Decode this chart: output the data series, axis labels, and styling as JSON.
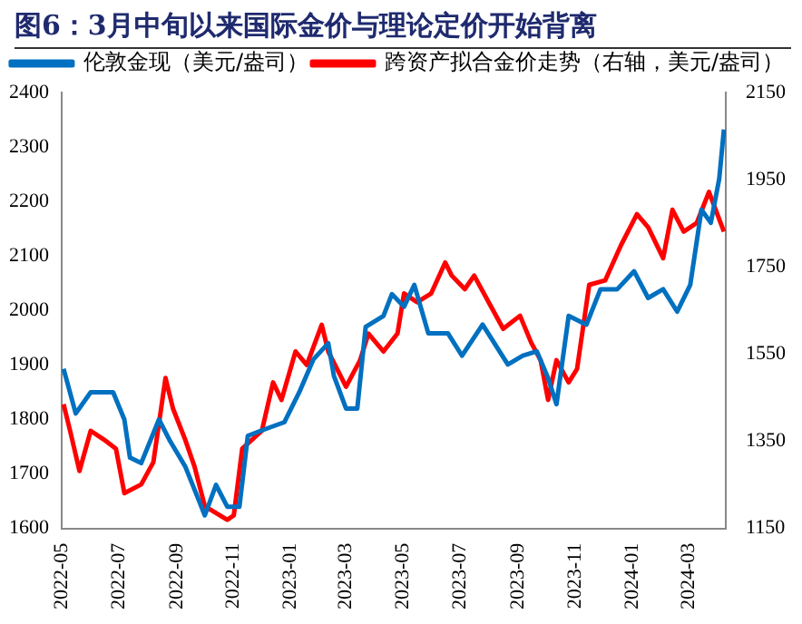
{
  "chart_data": {
    "type": "line",
    "title": "图6：3月中旬以来国际金价与理论定价开始背离",
    "legend": "top",
    "grid": false,
    "marker": "none",
    "line_style": "solid",
    "xlim": [
      "2022-05-01",
      "2024-04-10"
    ],
    "xticks": [
      "2022-05",
      "2022-07",
      "2022-09",
      "2022-11",
      "2023-01",
      "2023-03",
      "2023-05",
      "2023-07",
      "2023-09",
      "2023-11",
      "2024-01",
      "2024-03"
    ],
    "ylim": [
      1600,
      2400
    ],
    "yticks": [
      1600,
      1700,
      1800,
      1900,
      2000,
      2100,
      2200,
      2300,
      2400
    ],
    "y2lim": [
      1150,
      2150
    ],
    "y2ticks": [
      1150,
      1350,
      1550,
      1750,
      1950,
      2150
    ],
    "series": [
      {
        "name": "伦敦金现（美元/盎司）",
        "color": "#0070c0",
        "x": [
          "2022-05-03",
          "2022-05-16",
          "2022-06-01",
          "2022-06-25",
          "2022-07-07",
          "2022-07-13",
          "2022-07-25",
          "2022-08-13",
          "2022-08-25",
          "2022-09-10",
          "2022-09-25",
          "2022-10-01",
          "2022-10-13",
          "2022-10-25",
          "2022-11-07",
          "2022-11-16",
          "2022-12-01",
          "2022-12-25",
          "2023-01-10",
          "2023-01-25",
          "2023-02-10",
          "2023-02-16",
          "2023-03-01",
          "2023-03-13",
          "2023-03-22",
          "2023-04-10",
          "2023-04-19",
          "2023-05-02",
          "2023-05-13",
          "2023-05-28",
          "2023-06-18",
          "2023-07-03",
          "2023-07-25",
          "2023-08-21",
          "2023-09-06",
          "2023-09-21",
          "2023-10-03",
          "2023-10-12",
          "2023-10-25",
          "2023-11-13",
          "2023-11-28",
          "2023-12-16",
          "2024-01-03",
          "2024-01-18",
          "2024-02-03",
          "2024-02-18",
          "2024-03-03",
          "2024-03-15",
          "2024-03-25",
          "2024-04-03",
          "2024-04-08"
        ],
        "values": [
          1893,
          1811,
          1850,
          1850,
          1800,
          1730,
          1720,
          1800,
          1760,
          1714,
          1650,
          1624,
          1680,
          1640,
          1640,
          1770,
          1780,
          1795,
          1850,
          1910,
          1940,
          1880,
          1820,
          1820,
          1970,
          1990,
          2030,
          2007,
          2047,
          1958,
          1958,
          1917,
          1974,
          1901,
          1917,
          1925,
          1876,
          1828,
          1990,
          1974,
          2039,
          2039,
          2072,
          2023,
          2039,
          1998,
          2047,
          2185,
          2161,
          2242,
          2332
        ]
      },
      {
        "name": "跨资产拟合金价走势（右轴，美元/盎司）",
        "color": "#ff0000",
        "axis": "y2",
        "x": [
          "2022-05-03",
          "2022-05-10",
          "2022-05-20",
          "2022-06-01",
          "2022-06-15",
          "2022-06-28",
          "2022-07-07",
          "2022-07-25",
          "2022-08-07",
          "2022-08-20",
          "2022-08-28",
          "2022-09-10",
          "2022-09-20",
          "2022-10-01",
          "2022-10-25",
          "2022-11-01",
          "2022-11-10",
          "2022-12-01",
          "2022-12-13",
          "2022-12-22",
          "2023-01-06",
          "2023-01-18",
          "2023-02-03",
          "2023-02-10",
          "2023-03-01",
          "2023-03-16",
          "2023-03-25",
          "2023-04-10",
          "2023-04-25",
          "2023-05-02",
          "2023-05-16",
          "2023-05-31",
          "2023-06-15",
          "2023-06-22",
          "2023-07-06",
          "2023-07-16",
          "2023-08-03",
          "2023-08-16",
          "2023-09-03",
          "2023-09-15",
          "2023-09-25",
          "2023-10-03",
          "2023-10-12",
          "2023-10-25",
          "2023-11-03",
          "2023-11-16",
          "2023-12-03",
          "2023-12-20",
          "2024-01-06",
          "2024-01-18",
          "2024-02-03",
          "2024-02-13",
          "2024-02-25",
          "2024-03-10",
          "2024-03-23",
          "2024-04-08"
        ],
        "values": [
          1435,
          1374,
          1282,
          1374,
          1354,
          1333,
          1231,
          1251,
          1302,
          1495,
          1425,
          1354,
          1292,
          1201,
          1170,
          1180,
          1333,
          1374,
          1485,
          1445,
          1556,
          1525,
          1617,
          1556,
          1475,
          1536,
          1597,
          1556,
          1597,
          1689,
          1669,
          1689,
          1760,
          1730,
          1699,
          1730,
          1659,
          1608,
          1638,
          1576,
          1536,
          1445,
          1536,
          1485,
          1516,
          1709,
          1719,
          1800,
          1871,
          1841,
          1770,
          1881,
          1831,
          1851,
          1922,
          1831
        ]
      }
    ]
  }
}
